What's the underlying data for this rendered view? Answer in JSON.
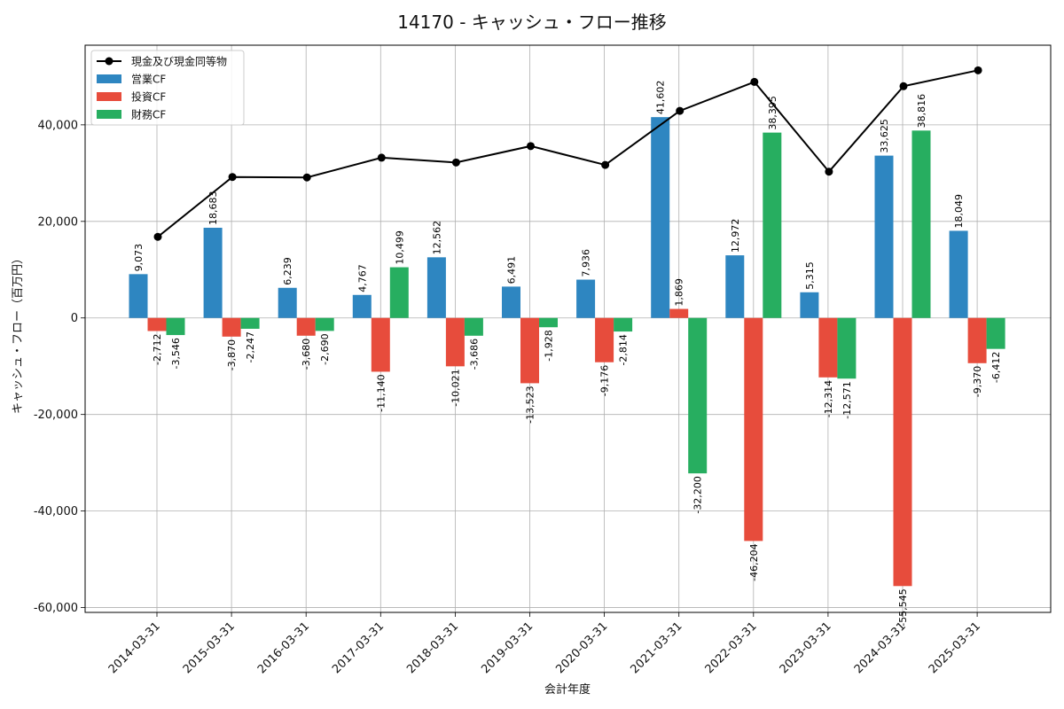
{
  "chart_data": {
    "type": "bar",
    "title": "14170 - キャッシュ・フロー推移",
    "xlabel": "会計年度",
    "ylabel": "キャッシュ・フロー（百万円）",
    "ylim": [
      -61000,
      56500
    ],
    "yticks": [
      -60000,
      -40000,
      -20000,
      0,
      20000,
      40000
    ],
    "ytick_labels": [
      "-60,000",
      "-40,000",
      "-20,000",
      "0",
      "20,000",
      "40,000"
    ],
    "grid": true,
    "legend_position": "top-left",
    "categories": [
      "2014-03-31",
      "2015-03-31",
      "2016-03-31",
      "2017-03-31",
      "2018-03-31",
      "2019-03-31",
      "2020-03-31",
      "2021-03-31",
      "2022-03-31",
      "2023-03-31",
      "2024-03-31",
      "2025-03-31"
    ],
    "series": [
      {
        "name": "営業CF",
        "kind": "bar",
        "color": "#2e86c1",
        "values": [
          9073,
          18683,
          6239,
          4767,
          12562,
          6491,
          7936,
          41602,
          12972,
          5315,
          33625,
          18049
        ],
        "labels": [
          "9,073",
          "18,683",
          "6,239",
          "4,767",
          "12,562",
          "6,491",
          "7,936",
          "41,602",
          "12,972",
          "5,315",
          "33,625",
          "18,049"
        ]
      },
      {
        "name": "投資CF",
        "kind": "bar",
        "color": "#e74c3c",
        "values": [
          -2712,
          -3870,
          -3680,
          -11140,
          -10021,
          -13523,
          -9176,
          1869,
          -46204,
          -12314,
          -55545,
          -9370
        ],
        "labels": [
          "-2,712",
          "-3,870",
          "-3,680",
          "-11,140",
          "-10,021",
          "-13,523",
          "-9,176",
          "1,869",
          "-46,204",
          "-12,314",
          "-55,545",
          "-9,370"
        ]
      },
      {
        "name": "財務CF",
        "kind": "bar",
        "color": "#27ae60",
        "values": [
          -3546,
          -2247,
          -2690,
          10499,
          -3686,
          -1928,
          -2814,
          -32200,
          38395,
          -12571,
          38816,
          -6412
        ],
        "labels": [
          "-3,546",
          "-2,247",
          "-2,690",
          "10,499",
          "-3,686",
          "-1,928",
          "-2,814",
          "-32,200",
          "38,395",
          "-12,571",
          "38,816",
          "-6,412"
        ]
      },
      {
        "name": "現金及び現金同等物",
        "kind": "line",
        "color": "#000000",
        "values": [
          16800,
          29200,
          29100,
          33200,
          32200,
          35600,
          31700,
          42900,
          48900,
          30300,
          48000,
          51300
        ]
      }
    ]
  }
}
